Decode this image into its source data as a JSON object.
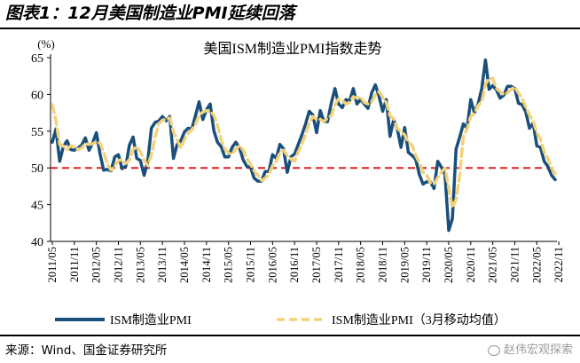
{
  "figure_title": "图表1：12月美国制造业PMI延续回落",
  "source_text": "来源：Wind、国金证券研究所",
  "watermark": "赵伟宏观探索",
  "colors": {
    "pmi_line": "#1a4f7c",
    "ma_line": "#f3d27a",
    "threshold_line": "#e02020",
    "axis": "#000000"
  },
  "chart_data": {
    "type": "line",
    "title": "美国ISM制造业PMI指数走势",
    "ylabel": "(%)",
    "ylim": [
      40,
      65
    ],
    "yticks": [
      40,
      45,
      50,
      55,
      60,
      65
    ],
    "x_start": "2011-05",
    "x_end": "2022-12",
    "xtick_labels": [
      "2011/05",
      "2011/11",
      "2012/05",
      "2012/11",
      "2013/05",
      "2013/11",
      "2014/05",
      "2014/11",
      "2015/05",
      "2015/11",
      "2016/05",
      "2016/11",
      "2017/05",
      "2017/11",
      "2018/05",
      "2018/11",
      "2019/05",
      "2019/11",
      "2020/05",
      "2020/11",
      "2021/05",
      "2021/11",
      "2022/05",
      "2022/11"
    ],
    "reference_line": {
      "value": 50,
      "style": "dashed"
    },
    "series": [
      {
        "name": "ISM制造业PMI",
        "values": [
          53.5,
          55.3,
          50.9,
          52.9,
          53.7,
          52.5,
          52.4,
          52.7,
          53.1,
          54.1,
          52.4,
          53.4,
          54.8,
          51.9,
          49.7,
          49.8,
          49.6,
          51.5,
          51.8,
          49.9,
          50.2,
          53.1,
          54.2,
          51.3,
          51.0,
          49.0,
          50.9,
          55.4,
          56.2,
          56.4,
          57.0,
          56.4,
          57.0,
          51.3,
          53.2,
          53.7,
          54.9,
          55.4,
          55.3,
          57.1,
          59.0,
          56.6,
          57.9,
          58.7,
          55.1,
          53.5,
          52.9,
          51.5,
          51.5,
          52.8,
          53.5,
          52.7,
          51.1,
          50.2,
          50.1,
          48.6,
          48.2,
          48.2,
          49.5,
          49.5,
          51.8,
          51.3,
          53.2,
          52.6,
          49.4,
          51.5,
          51.9,
          53.2,
          54.5,
          56.0,
          57.7,
          57.2,
          54.8,
          57.8,
          56.3,
          56.3,
          58.8,
          60.8,
          58.7,
          58.2,
          59.3,
          59.1,
          60.8,
          58.7,
          59.3,
          58.7,
          58.1,
          60.2,
          61.3,
          59.8,
          57.7,
          59.3,
          54.3,
          56.6,
          55.3,
          52.8,
          55.5,
          52.1,
          51.7,
          51.2,
          49.1,
          47.8,
          48.1,
          48.1,
          47.2,
          50.9,
          50.1,
          49.1,
          41.5,
          43.1,
          52.6,
          54.2,
          56.0,
          55.4,
          59.3,
          57.5,
          58.7,
          60.8,
          64.7,
          60.7,
          61.2,
          60.6,
          59.5,
          59.9,
          61.1,
          61.1,
          60.8,
          58.8,
          58.6,
          57.6,
          55.4,
          56.1,
          53.0,
          52.8,
          50.9,
          50.2,
          49.0,
          48.4
        ],
        "style": "solid"
      },
      {
        "name": "ISM制造业PMI（3月移动均值）",
        "values": [
          58.6,
          56.4,
          53.2,
          53.0,
          52.5,
          53.0,
          52.9,
          52.5,
          52.7,
          53.3,
          53.2,
          53.3,
          53.5,
          53.4,
          52.1,
          50.5,
          49.7,
          50.3,
          51.0,
          51.1,
          50.6,
          51.1,
          52.5,
          52.9,
          52.2,
          51.1,
          50.3,
          51.8,
          54.2,
          56.0,
          56.5,
          56.6,
          56.8,
          54.9,
          53.8,
          52.7,
          53.9,
          54.7,
          55.2,
          55.9,
          57.2,
          57.6,
          57.8,
          57.7,
          57.2,
          55.8,
          53.8,
          52.6,
          52.0,
          51.9,
          52.6,
          53.0,
          52.4,
          51.3,
          50.5,
          49.6,
          49.0,
          48.3,
          48.6,
          49.1,
          50.3,
          50.9,
          52.1,
          52.4,
          51.7,
          51.2,
          50.9,
          52.2,
          53.2,
          54.6,
          56.1,
          57.0,
          56.6,
          56.6,
          56.3,
          56.8,
          57.1,
          58.6,
          59.4,
          59.2,
          58.7,
          58.9,
          59.7,
          59.5,
          59.6,
          58.9,
          58.7,
          59.0,
          59.9,
          60.4,
          59.6,
          58.9,
          57.1,
          56.7,
          55.4,
          54.9,
          54.5,
          53.5,
          53.1,
          51.7,
          50.7,
          49.4,
          49.0,
          48.0,
          47.8,
          48.7,
          49.4,
          50.0,
          47.2,
          44.6,
          45.7,
          49.0,
          54.3,
          55.3,
          57.0,
          57.4,
          58.5,
          59.0,
          61.4,
          62.1,
          62.2,
          60.8,
          60.4,
          60.0,
          60.2,
          60.7,
          61.0,
          60.2,
          59.4,
          58.3,
          57.2,
          56.4,
          54.8,
          53.9,
          52.2,
          51.3,
          50.0,
          49.2
        ],
        "style": "dashed"
      }
    ],
    "legend": {
      "placement": "bottom",
      "entries": [
        "ISM制造业PMI",
        "ISM制造业PMI（3月移动均值）"
      ]
    }
  }
}
